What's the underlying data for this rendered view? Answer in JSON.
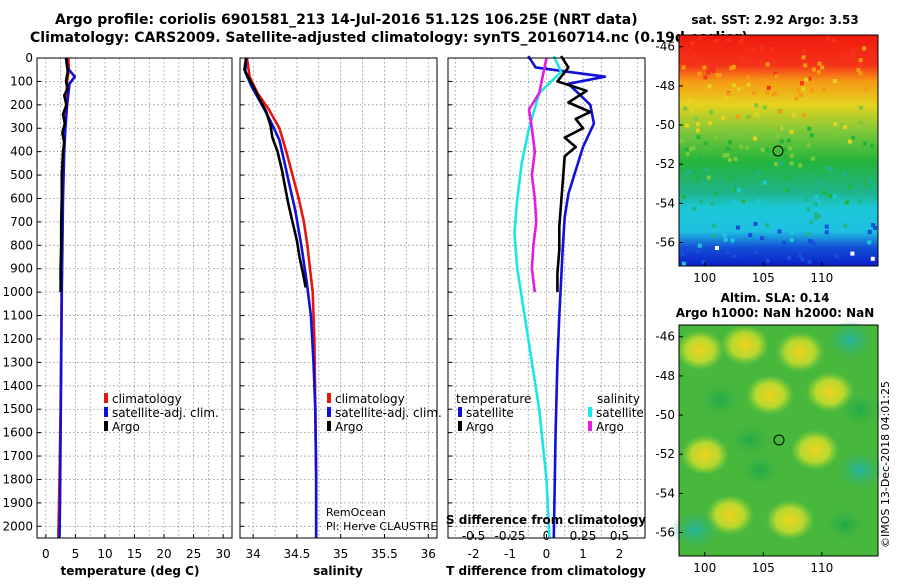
{
  "header": {
    "line1": "Argo profile: coriolis 6901581_213 14-Jul-2016 51.12S 106.25E (NRT data)",
    "line2": "Climatology: CARS2009. Satellite-adjusted climatology: synTS_20160714.nc (0.19d earlier)"
  },
  "colors": {
    "climatology": "#e8150c",
    "satellite": "#1010d8",
    "argo": "#000000",
    "satellite_s": "#19e6e6",
    "argo_s": "#e619e6",
    "grid": "#888888"
  },
  "chart_data": [
    {
      "name": "temperature_panel",
      "type": "line",
      "xlabel": "temperature (deg C)",
      "ylabel": "",
      "xlim": [
        -1.5,
        31.5
      ],
      "ylim": [
        2050,
        0
      ],
      "x_ticks": [
        0,
        5,
        10,
        15,
        20,
        25,
        30
      ],
      "y_ticks": [
        0,
        100,
        200,
        300,
        400,
        500,
        600,
        700,
        800,
        900,
        1000,
        1100,
        1200,
        1300,
        1400,
        1500,
        1600,
        1700,
        1800,
        1900,
        2000
      ],
      "legend": [
        "climatology",
        "satellite-adj. clim.",
        "Argo"
      ],
      "series": [
        {
          "name": "climatology",
          "color_key": "climatology",
          "points": [
            [
              3.8,
              0
            ],
            [
              3.9,
              50
            ],
            [
              3.6,
              100
            ],
            [
              3.4,
              200
            ],
            [
              3.2,
              300
            ],
            [
              3.0,
              400
            ],
            [
              2.9,
              500
            ],
            [
              2.8,
              700
            ],
            [
              2.7,
              900
            ],
            [
              2.6,
              1200
            ],
            [
              2.5,
              1500
            ],
            [
              2.3,
              1800
            ],
            [
              2.1,
              2050
            ]
          ]
        },
        {
          "name": "satellite-adj. clim.",
          "color_key": "satellite",
          "points": [
            [
              3.4,
              0
            ],
            [
              3.6,
              40
            ],
            [
              4.9,
              80
            ],
            [
              4.0,
              110
            ],
            [
              3.6,
              200
            ],
            [
              3.3,
              300
            ],
            [
              3.1,
              400
            ],
            [
              2.9,
              600
            ],
            [
              2.8,
              800
            ],
            [
              2.7,
              1000
            ],
            [
              2.6,
              1300
            ],
            [
              2.5,
              1600
            ],
            [
              2.4,
              1900
            ],
            [
              2.3,
              2050
            ]
          ]
        },
        {
          "name": "Argo",
          "color_key": "argo",
          "points": [
            [
              3.5,
              0
            ],
            [
              3.7,
              60
            ],
            [
              3.4,
              100
            ],
            [
              3.7,
              130
            ],
            [
              3.1,
              160
            ],
            [
              3.5,
              200
            ],
            [
              2.9,
              240
            ],
            [
              3.2,
              280
            ],
            [
              2.8,
              320
            ],
            [
              3.1,
              360
            ],
            [
              2.9,
              400
            ],
            [
              2.8,
              450
            ],
            [
              2.7,
              500
            ],
            [
              2.7,
              600
            ],
            [
              2.6,
              700
            ],
            [
              2.6,
              800
            ],
            [
              2.5,
              900
            ],
            [
              2.5,
              1000
            ]
          ]
        }
      ]
    },
    {
      "name": "salinity_panel",
      "type": "line",
      "xlabel": "salinity",
      "xlim": [
        33.85,
        36.1
      ],
      "ylim": [
        2050,
        0
      ],
      "x_ticks": [
        34,
        34.5,
        35,
        35.5,
        36
      ],
      "legend": [
        "climatology",
        "satellite-adj. clim.",
        "Argo"
      ],
      "annotations": [
        "RemOcean",
        "PI: Herve CLAUSTRE"
      ],
      "series": [
        {
          "name": "climatology",
          "color_key": "climatology",
          "points": [
            [
              33.93,
              0
            ],
            [
              33.96,
              80
            ],
            [
              34.05,
              150
            ],
            [
              34.18,
              220
            ],
            [
              34.3,
              300
            ],
            [
              34.38,
              400
            ],
            [
              34.45,
              500
            ],
            [
              34.52,
              600
            ],
            [
              34.58,
              700
            ],
            [
              34.62,
              800
            ],
            [
              34.65,
              900
            ],
            [
              34.68,
              1000
            ],
            [
              34.7,
              1200
            ],
            [
              34.71,
              1500
            ],
            [
              34.72,
              1800
            ],
            [
              34.72,
              2050
            ]
          ]
        },
        {
          "name": "satellite-adj. clim.",
          "color_key": "satellite",
          "points": [
            [
              33.92,
              0
            ],
            [
              33.91,
              60
            ],
            [
              33.98,
              120
            ],
            [
              34.1,
              200
            ],
            [
              34.2,
              270
            ],
            [
              34.3,
              350
            ],
            [
              34.36,
              450
            ],
            [
              34.42,
              550
            ],
            [
              34.48,
              650
            ],
            [
              34.55,
              800
            ],
            [
              34.61,
              950
            ],
            [
              34.66,
              1100
            ],
            [
              34.69,
              1300
            ],
            [
              34.71,
              1500
            ],
            [
              34.72,
              1800
            ],
            [
              34.72,
              2050
            ]
          ]
        },
        {
          "name": "Argo",
          "color_key": "argo",
          "points": [
            [
              33.92,
              0
            ],
            [
              33.9,
              50
            ],
            [
              34.0,
              120
            ],
            [
              34.08,
              180
            ],
            [
              34.15,
              230
            ],
            [
              34.2,
              290
            ],
            [
              34.22,
              340
            ],
            [
              34.28,
              400
            ],
            [
              34.33,
              480
            ],
            [
              34.37,
              560
            ],
            [
              34.4,
              620
            ],
            [
              34.45,
              700
            ],
            [
              34.5,
              780
            ],
            [
              34.53,
              850
            ],
            [
              34.57,
              920
            ],
            [
              34.6,
              980
            ]
          ]
        }
      ]
    },
    {
      "name": "difference_panel",
      "type": "line",
      "xlabel": "T difference from climatology",
      "xlabel_top": "S difference from climatology",
      "xlim": [
        -2.7,
        2.7
      ],
      "ylim": [
        2050,
        0
      ],
      "x_ticks": [
        -2,
        -1,
        0,
        1,
        2
      ],
      "x_ticks_s": [
        -0.5,
        -0.25,
        0,
        0.25,
        0.5
      ],
      "legend_t_title": "temperature",
      "legend_s_title": "salinity",
      "legend_t": [
        "satellite",
        "Argo"
      ],
      "legend_s": [
        "satellite",
        "Argo"
      ],
      "series": [
        {
          "name": "T satellite",
          "color_key": "satellite",
          "points": [
            [
              -0.5,
              -30
            ],
            [
              -0.3,
              40
            ],
            [
              1.6,
              80
            ],
            [
              0.6,
              110
            ],
            [
              1.2,
              200
            ],
            [
              1.3,
              280
            ],
            [
              1.0,
              380
            ],
            [
              0.8,
              480
            ],
            [
              0.6,
              580
            ],
            [
              0.5,
              680
            ],
            [
              0.45,
              800
            ],
            [
              0.4,
              950
            ],
            [
              0.35,
              1100
            ],
            [
              0.3,
              1300
            ],
            [
              0.25,
              1600
            ],
            [
              0.2,
              2050
            ]
          ]
        },
        {
          "name": "T Argo",
          "color_key": "argo",
          "points": [
            [
              0.4,
              -30
            ],
            [
              0.6,
              40
            ],
            [
              0.3,
              100
            ],
            [
              1.1,
              140
            ],
            [
              0.6,
              190
            ],
            [
              1.2,
              230
            ],
            [
              0.8,
              260
            ],
            [
              1.0,
              300
            ],
            [
              0.5,
              340
            ],
            [
              0.8,
              380
            ],
            [
              0.5,
              420
            ],
            [
              0.45,
              520
            ],
            [
              0.4,
              620
            ],
            [
              0.35,
              720
            ],
            [
              0.35,
              820
            ],
            [
              0.3,
              920
            ],
            [
              0.3,
              1000
            ]
          ]
        },
        {
          "name": "S satellite",
          "color_key": "satellite_s",
          "points": [
            [
              0.05,
              -30
            ],
            [
              0.1,
              60
            ],
            [
              -0.05,
              150
            ],
            [
              -0.12,
              300
            ],
            [
              -0.17,
              450
            ],
            [
              -0.2,
              600
            ],
            [
              -0.22,
              750
            ],
            [
              -0.2,
              900
            ],
            [
              -0.15,
              1100
            ],
            [
              -0.1,
              1300
            ],
            [
              -0.05,
              1500
            ],
            [
              0.0,
              1800
            ],
            [
              0.02,
              2050
            ]
          ]
        },
        {
          "name": "S Argo",
          "color_key": "argo_s",
          "points": [
            [
              0.0,
              0
            ],
            [
              -0.05,
              150
            ],
            [
              -0.12,
              220
            ],
            [
              -0.1,
              300
            ],
            [
              -0.08,
              400
            ],
            [
              -0.1,
              500
            ],
            [
              -0.08,
              600
            ],
            [
              -0.07,
              700
            ],
            [
              -0.09,
              800
            ],
            [
              -0.1,
              900
            ],
            [
              -0.08,
              1000
            ]
          ]
        }
      ]
    }
  ],
  "sst_map": {
    "title": "sat. SST: 2.92 Argo: 3.53",
    "lon_ticks": [
      "100",
      "105",
      "110"
    ],
    "lat_ticks": [
      "-46",
      "-48",
      "-50",
      "-52",
      "-54",
      "-56"
    ],
    "marker_lon": 106.25,
    "marker_lat": -51.12
  },
  "sla_map": {
    "title1": "Altim. SLA: 0.14",
    "title2": "Argo h1000: NaN h2000: NaN",
    "lon_ticks": [
      "100",
      "105",
      "110"
    ],
    "lat_ticks": [
      "-46",
      "-48",
      "-50",
      "-52",
      "-54",
      "-56"
    ],
    "marker_lon": 106.25,
    "marker_lat": -51.12
  },
  "credit": "©IMOS 13-Dec-2018 04:01:25"
}
